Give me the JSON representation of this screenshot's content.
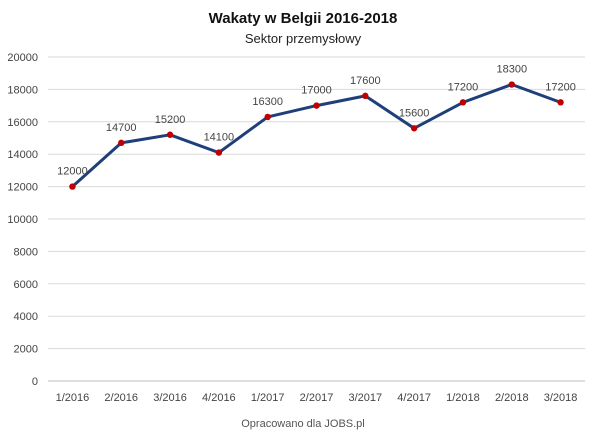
{
  "chart_data": {
    "type": "line",
    "title": "Wakaty w Belgii 2016-2018",
    "subtitle": "Sektor przemysłowy",
    "source": "Opracowano dla JOBS.pl",
    "categories": [
      "1/2016",
      "2/2016",
      "3/2016",
      "4/2016",
      "1/2017",
      "2/2017",
      "3/2017",
      "4/2017",
      "1/2018",
      "2/2018",
      "3/2018"
    ],
    "series": [
      {
        "values": [
          12000,
          14700,
          15200,
          14100,
          16300,
          17000,
          17600,
          15600,
          17200,
          18300,
          17200
        ]
      }
    ],
    "ylim": [
      0,
      20000
    ],
    "yticks": [
      "0",
      "2000",
      "4000",
      "6000",
      "8000",
      "10000",
      "12000",
      "14000",
      "16000",
      "18000",
      "20000"
    ],
    "grid": true,
    "colors": {
      "line": "#1f3f7a",
      "marker": "#c00000"
    }
  }
}
